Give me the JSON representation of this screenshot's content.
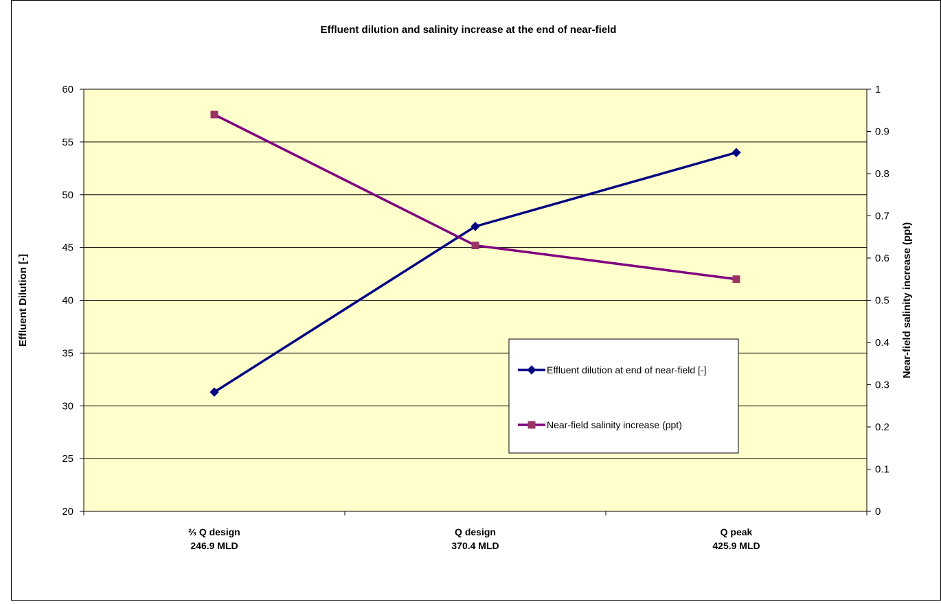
{
  "chart_data": {
    "type": "line",
    "title": "Effluent dilution and salinity increase at the end of near-field",
    "categories": [
      {
        "line1": "⅔ Q design",
        "line2": "246.9 MLD"
      },
      {
        "line1": "Q design",
        "line2": "370.4 MLD"
      },
      {
        "line1": "Q peak",
        "line2": "425.9 MLD"
      }
    ],
    "y_left": {
      "label": "Effluent Dilution [-]",
      "range": [
        20,
        60
      ],
      "ticks": [
        20,
        25,
        30,
        35,
        40,
        45,
        50,
        55,
        60
      ]
    },
    "y_right": {
      "label": "Near-field salinity increase (ppt)",
      "range": [
        0,
        1
      ],
      "ticks": [
        "0",
        "0.1",
        "0.2",
        "0.3",
        "0.4",
        "0.5",
        "0.6",
        "0.7",
        "0.8",
        "0.9",
        "1"
      ]
    },
    "series": [
      {
        "name": "Effluent dilution at end of near-field [-]",
        "axis": "left",
        "marker": "diamond",
        "color": "#000080",
        "values": [
          31.3,
          47.0,
          54.0
        ]
      },
      {
        "name": "Near-field salinity increase (ppt)",
        "axis": "right",
        "marker": "square",
        "color": "#800080",
        "marker_color": "#993366",
        "values": [
          0.94,
          0.63,
          0.55
        ]
      }
    ],
    "plot_background": "#FFFFCC",
    "grid": "horizontal",
    "legend_position": "inside-right"
  }
}
